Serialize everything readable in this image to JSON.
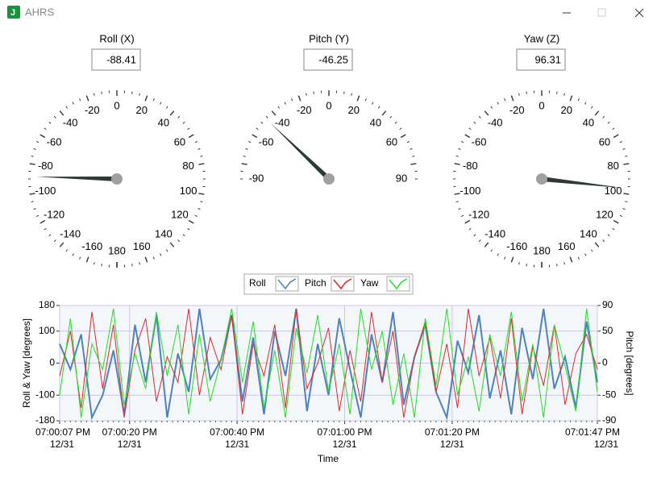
{
  "window": {
    "title": "AHRS"
  },
  "gauges": [
    {
      "title": "Roll (X)",
      "value": -88.41,
      "range": [
        -180,
        180
      ],
      "ticks": [
        -160,
        -140,
        -120,
        -100,
        -80,
        -60,
        -40,
        -20,
        0,
        20,
        40,
        60,
        80,
        100,
        120,
        140,
        160,
        180
      ]
    },
    {
      "title": "Pitch (Y)",
      "value": -46.25,
      "range": [
        -90,
        90
      ],
      "ticks": [
        -90,
        -60,
        -40,
        -20,
        0,
        20,
        40,
        60,
        90
      ]
    },
    {
      "title": "Yaw (Z)",
      "value": 96.31,
      "range": [
        -180,
        180
      ],
      "ticks": [
        -160,
        -140,
        -120,
        -100,
        -80,
        -60,
        -40,
        -20,
        0,
        20,
        40,
        60,
        80,
        100,
        120,
        140,
        160,
        180
      ]
    }
  ],
  "chart_data": {
    "type": "line",
    "x": [
      "07:00:07 PM",
      "07:00:09 PM",
      "07:00:11 PM",
      "07:00:13 PM",
      "07:00:15 PM",
      "07:00:17 PM",
      "07:00:19 PM",
      "07:00:21 PM",
      "07:00:23 PM",
      "07:00:25 PM",
      "07:00:27 PM",
      "07:00:29 PM",
      "07:00:31 PM",
      "07:00:33 PM",
      "07:00:35 PM",
      "07:00:37 PM",
      "07:00:39 PM",
      "07:00:41 PM",
      "07:00:43 PM",
      "07:00:45 PM",
      "07:00:47 PM",
      "07:00:49 PM",
      "07:00:51 PM",
      "07:00:53 PM",
      "07:00:55 PM",
      "07:00:57 PM",
      "07:00:59 PM",
      "07:01:01 PM",
      "07:01:03 PM",
      "07:01:05 PM",
      "07:01:07 PM",
      "07:01:09 PM",
      "07:01:11 PM",
      "07:01:13 PM",
      "07:01:15 PM",
      "07:01:17 PM",
      "07:01:19 PM",
      "07:01:21 PM",
      "07:01:23 PM",
      "07:01:25 PM",
      "07:01:27 PM",
      "07:01:29 PM",
      "07:01:31 PM",
      "07:01:33 PM",
      "07:01:35 PM",
      "07:01:37 PM",
      "07:01:39 PM",
      "07:01:41 PM",
      "07:01:43 PM",
      "07:01:45 PM",
      "07:01:47 PM"
    ],
    "date": "12/31",
    "series": [
      {
        "name": "Roll",
        "color": "#4f81bd",
        "axis": "y",
        "values": [
          60,
          -20,
          90,
          -170,
          -100,
          40,
          -160,
          120,
          -60,
          150,
          -170,
          30,
          -90,
          170,
          -50,
          10,
          150,
          -120,
          80,
          -160,
          100,
          -40,
          170,
          -150,
          60,
          -100,
          140,
          -20,
          -170,
          90,
          -60,
          160,
          -130,
          20,
          120,
          -90,
          -170,
          70,
          -30,
          150,
          -110,
          40,
          -160,
          110,
          -50,
          170,
          -80,
          20,
          -140,
          130,
          -60
        ]
      },
      {
        "name": "Pitch",
        "color": "#e02828",
        "axis": "y2",
        "values": [
          -20,
          50,
          -70,
          80,
          -40,
          60,
          -85,
          20,
          70,
          -60,
          10,
          -30,
          85,
          -50,
          40,
          -10,
          75,
          -80,
          30,
          -20,
          60,
          -70,
          85,
          -40,
          0,
          55,
          -75,
          20,
          -60,
          80,
          -30,
          50,
          -85,
          10,
          65,
          -45,
          30,
          -70,
          85,
          -20,
          40,
          -55,
          70,
          -80,
          25,
          -35,
          60,
          -65,
          15,
          45,
          -10
        ]
      },
      {
        "name": "Yaw",
        "color": "#1ee01e",
        "axis": "y",
        "values": [
          -100,
          140,
          -170,
          60,
          -20,
          170,
          -130,
          30,
          -80,
          160,
          -40,
          120,
          -160,
          90,
          -120,
          10,
          170,
          -60,
          130,
          -140,
          40,
          -170,
          110,
          -30,
          150,
          -90,
          60,
          -160,
          170,
          -20,
          100,
          -130,
          30,
          -170,
          140,
          -70,
          170,
          -100,
          20,
          -150,
          90,
          -40,
          160,
          -120,
          60,
          -170,
          120,
          -10,
          -150,
          170,
          -90
        ]
      }
    ],
    "xlim": [
      "07:00:07 PM",
      "07:01:47 PM"
    ],
    "xticks": [
      "07:00:07 PM",
      "07:00:20 PM",
      "07:00:40 PM",
      "07:01:00 PM",
      "07:01:20 PM",
      "07:01:47 PM"
    ],
    "ylim": [
      -180,
      180
    ],
    "yticks": [
      -180,
      -100,
      0,
      100,
      180
    ],
    "y2lim": [
      -90,
      90
    ],
    "y2ticks": [
      -90,
      -50,
      0,
      50,
      90
    ],
    "ylabel": "Roll & Yaw [degrees]",
    "y2label": "Pitch [degrees]",
    "xlabel": "Time",
    "grid": true
  }
}
